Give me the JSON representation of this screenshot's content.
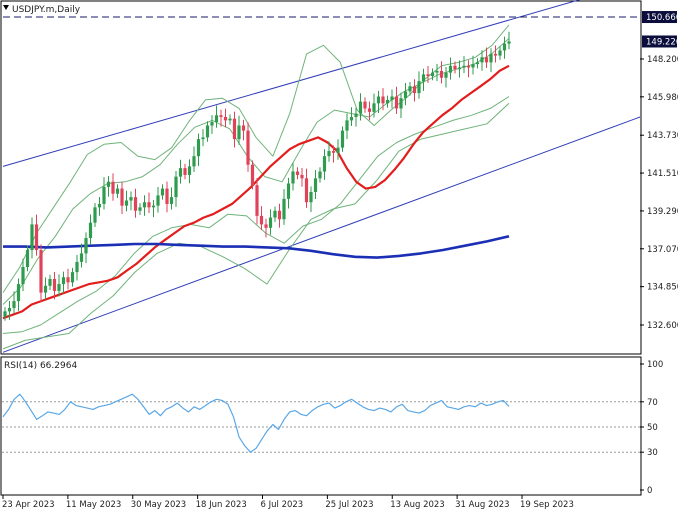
{
  "symbol_label": "USDJPY.m,Daily",
  "rsi_label": "RSI(14) 66.2964",
  "colors": {
    "bull": "#2e9b4e",
    "bear": "#e0425a",
    "ma_short": "#e31c1c",
    "ma_long": "#1b2fb5",
    "bollinger": "#6fb37a",
    "channel": "#2f3db8",
    "rsi": "#5aa7e6",
    "resistance": "#1a1a6b",
    "price_tag": "#0b0e3d"
  },
  "chart_data": [
    {
      "type": "candlestick",
      "title": "USDJPY.m,Daily",
      "x_labels": [
        "23 Apr 2023",
        "11 May 2023",
        "30 May 2023",
        "18 Jun 2023",
        "6 Jul 2023",
        "25 Jul 2023",
        "13 Aug 2023",
        "31 Aug 2023",
        "19 Sep 2023"
      ],
      "y_ticks": [
        132.6,
        134.85,
        137.07,
        139.29,
        141.51,
        143.73,
        145.98,
        148.2
      ],
      "y_tick_labels": [
        "132.600",
        "134.850",
        "137.070",
        "139.290",
        "141.510",
        "143.730",
        "145.980",
        "148.200"
      ],
      "ylim": [
        130.9,
        151.6
      ],
      "grid": false,
      "close": [
        133.4,
        133.6,
        134.0,
        135.0,
        136.0,
        137.0,
        138.5,
        137.0,
        134.5,
        134.9,
        135.3,
        134.6,
        135.0,
        135.4,
        135.1,
        135.7,
        136.3,
        136.8,
        137.7,
        138.6,
        139.5,
        139.7,
        140.7,
        141.0,
        140.3,
        140.6,
        139.6,
        139.9,
        140.1,
        139.3,
        139.5,
        139.8,
        139.5,
        139.6,
        140.2,
        140.6,
        139.7,
        140.1,
        141.3,
        141.8,
        141.4,
        141.9,
        142.5,
        143.5,
        143.6,
        144.3,
        144.5,
        144.9,
        144.8,
        144.6,
        144.7,
        143.5,
        144.3,
        144.0,
        142.0,
        140.8,
        139.0,
        138.5,
        138.3,
        138.9,
        139.3,
        138.8,
        140.0,
        140.9,
        141.6,
        141.4,
        141.2,
        139.8,
        140.4,
        141.2,
        141.6,
        142.5,
        142.8,
        142.7,
        143.0,
        144.0,
        144.6,
        144.8,
        145.0,
        145.7,
        145.3,
        145.1,
        145.6,
        146.0,
        145.6,
        145.8,
        146.0,
        145.3,
        145.9,
        146.3,
        146.6,
        146.2,
        146.9,
        147.3,
        147.2,
        147.4,
        147.5,
        147.1,
        147.4,
        147.8,
        147.6,
        147.7,
        147.8,
        147.7,
        147.9,
        148.0,
        148.3,
        148.0,
        148.5,
        148.4,
        148.7,
        149.1,
        149.23
      ],
      "series": [
        {
          "name": "",
          "role": "sma20",
          "values": [
            133.0,
            133.2,
            133.4,
            133.8,
            134.0,
            134.2,
            134.4,
            134.6,
            134.8,
            135.0,
            135.1,
            135.2,
            135.4,
            135.8,
            136.2,
            136.7,
            137.2,
            137.6,
            138.0,
            138.4,
            138.6,
            138.9,
            139.1,
            139.4,
            139.7,
            140.2,
            140.7,
            141.3,
            141.9,
            142.4,
            142.9,
            143.2,
            143.4,
            143.6,
            143.3,
            142.8,
            141.8,
            141.0,
            140.6,
            140.7,
            141.1,
            141.7,
            142.4,
            143.2,
            143.9,
            144.4,
            144.9,
            145.3,
            145.8,
            146.2,
            146.6,
            147.0,
            147.5,
            147.8
          ]
        },
        {
          "name": "",
          "role": "sma200",
          "values": [
            137.2,
            137.2,
            137.15,
            137.2,
            137.25,
            137.3,
            137.35,
            137.35,
            137.3,
            137.25,
            137.2,
            137.2,
            137.15,
            137.1,
            136.95,
            136.75,
            136.6,
            136.55,
            136.65,
            136.8,
            137.0,
            137.25,
            137.5,
            137.8
          ]
        },
        {
          "name": "",
          "role": "bb_upper_2",
          "values": [
            134.5,
            136.0,
            138.0,
            139.5,
            141.0,
            142.6,
            143.2,
            143.3,
            142.5,
            142.3,
            143.0,
            144.5,
            145.8,
            145.9,
            145.3,
            143.6,
            142.5,
            145.0,
            148.5,
            149.0,
            148.0,
            145.2,
            144.3,
            145.2,
            146.0,
            147.0,
            147.8,
            148.0,
            148.3,
            149.0,
            150.2
          ]
        },
        {
          "name": "",
          "role": "bb_upper_1",
          "values": [
            133.8,
            134.8,
            136.5,
            137.8,
            139.4,
            140.3,
            140.9,
            141.0,
            141.3,
            142.0,
            143.2,
            144.2,
            144.6,
            144.1,
            142.5,
            141.3,
            141.0,
            142.8,
            144.5,
            145.2,
            145.0,
            144.8,
            145.6,
            146.3,
            146.8,
            147.3,
            147.6,
            147.9,
            148.5,
            149.4
          ]
        },
        {
          "name": "",
          "role": "bb_lower_1",
          "values": [
            132.1,
            132.2,
            132.6,
            133.3,
            134.0,
            134.6,
            135.5,
            136.8,
            137.8,
            138.3,
            138.5,
            138.3,
            139.1,
            139.0,
            138.0,
            137.4,
            138.4,
            138.8,
            139.7,
            141.1,
            142.5,
            143.3,
            143.8,
            144.2,
            144.6,
            144.9,
            145.3,
            146.0
          ]
        },
        {
          "name": "",
          "role": "bb_lower_2",
          "values": [
            131.2,
            131.7,
            131.9,
            132.1,
            133.3,
            134.3,
            135.7,
            136.8,
            137.4,
            137.2,
            136.6,
            135.9,
            135.0,
            137.0,
            138.8,
            139.4,
            139.7,
            141.1,
            142.8,
            143.5,
            143.8,
            144.1,
            144.4,
            145.6
          ]
        },
        {
          "name": "",
          "role": "channel_upper",
          "values": [
            141.9,
            152.7
          ]
        },
        {
          "name": "",
          "role": "channel_lower",
          "values": [
            131.0,
            144.8
          ]
        }
      ],
      "resistance": 150.66,
      "resistance_label": "150.660",
      "last_price": 149.226,
      "last_price_label": "149.226"
    },
    {
      "type": "line",
      "title": "RSI(14) 66.2964",
      "ylim": [
        0,
        100
      ],
      "y_ticks": [
        0,
        30,
        50,
        70,
        100
      ],
      "y_tick_labels": [
        "0",
        "30",
        "50",
        "70",
        "100"
      ],
      "levels": [
        30,
        50,
        70
      ],
      "series": [
        {
          "name": "RSI(14)",
          "values": [
            58,
            64,
            72,
            76,
            70,
            63,
            56,
            59,
            62,
            61,
            60,
            64,
            70,
            67,
            66,
            65,
            64,
            66,
            67,
            68,
            70,
            72,
            74,
            76,
            72,
            66,
            60,
            63,
            59,
            64,
            66,
            69,
            65,
            62,
            66,
            64,
            67,
            70,
            72,
            71,
            68,
            58,
            42,
            35,
            30,
            33,
            40,
            47,
            52,
            48,
            56,
            62,
            63,
            60,
            59,
            63,
            66,
            68,
            69,
            65,
            67,
            70,
            72,
            69,
            66,
            64,
            63,
            65,
            64,
            62,
            66,
            68,
            63,
            62,
            61,
            63,
            67,
            69,
            71,
            66,
            65,
            64,
            66,
            67,
            66,
            69,
            67,
            68,
            70,
            71,
            66.3
          ]
        }
      ]
    }
  ]
}
